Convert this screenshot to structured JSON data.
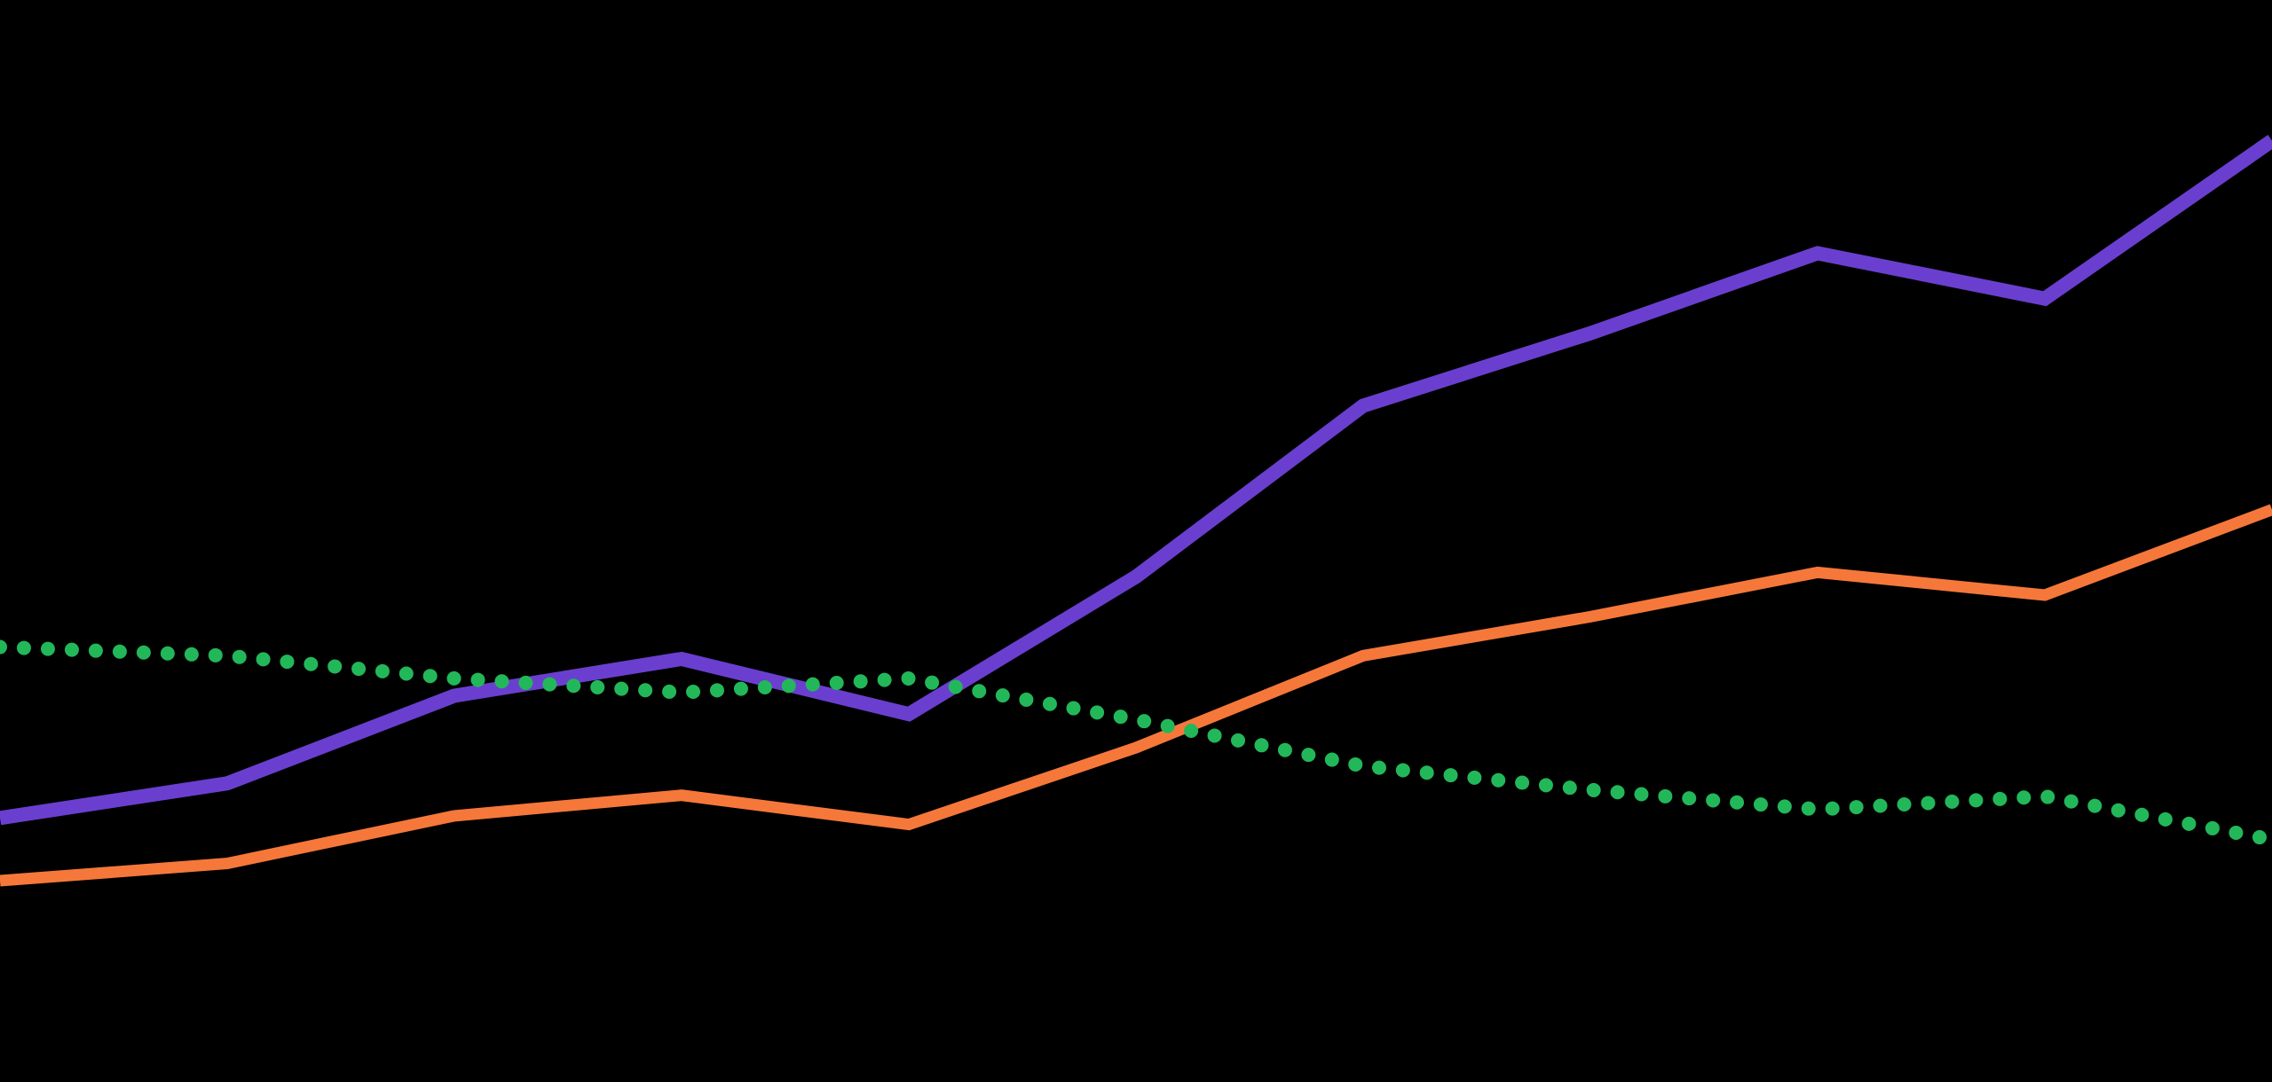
{
  "chart_data": {
    "type": "line",
    "categories": [
      null,
      null,
      null,
      null,
      null,
      null,
      null,
      null,
      null,
      null,
      null
    ],
    "ylim": [
      0,
      100
    ],
    "background": "#000000",
    "series": [
      {
        "color": "#6a3fcf",
        "width": 16,
        "style": "solid",
        "values": [
          24.4,
          27.6,
          35.7,
          39.1,
          34.0,
          46.7,
          62.5,
          69.2,
          76.6,
          72.4,
          87.0
        ]
      },
      {
        "color": "#f5783a",
        "width": 13,
        "style": "solid",
        "values": [
          18.6,
          20.2,
          24.6,
          26.5,
          23.8,
          30.9,
          39.4,
          43.0,
          47.1,
          45.0,
          52.9
        ]
      },
      {
        "color": "#22b859",
        "width": 16,
        "style": "dotted",
        "values": [
          40.2,
          39.4,
          37.3,
          36.0,
          37.3,
          33.5,
          29.2,
          27.0,
          25.2,
          26.4,
          22.4
        ]
      }
    ]
  }
}
